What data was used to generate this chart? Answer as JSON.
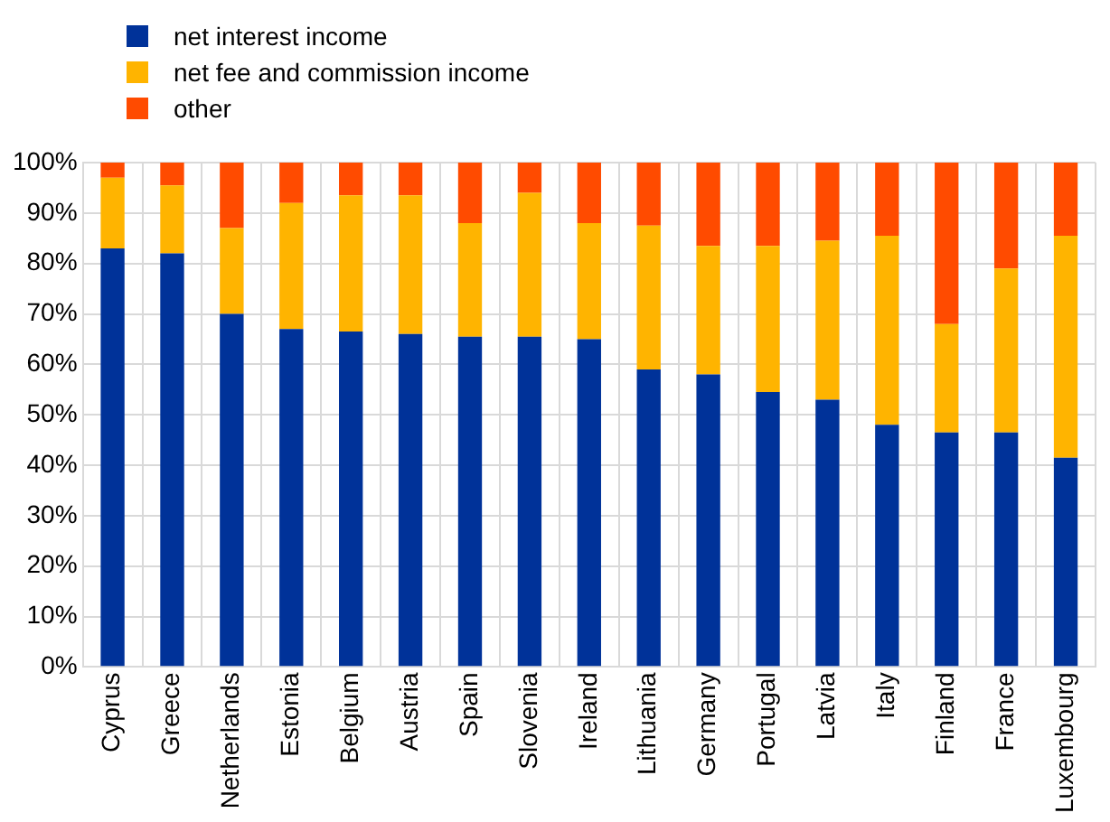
{
  "chart_data": {
    "type": "bar",
    "stacked": true,
    "legend": "top left",
    "grid": true,
    "categories": [
      "Cyprus",
      "Greece",
      "Netherlands",
      "Estonia",
      "Belgium",
      "Austria",
      "Spain",
      "Slovenia",
      "Ireland",
      "Lithuania",
      "Germany",
      "Portugal",
      "Latvia",
      "Italy",
      "Finland",
      "France",
      "Luxembourg"
    ],
    "ylim": [
      0,
      100
    ],
    "yticks": [
      {
        "value": 0,
        "label": "0%"
      },
      {
        "value": 10,
        "label": "10%"
      },
      {
        "value": 20,
        "label": "20%"
      },
      {
        "value": 30,
        "label": "30%"
      },
      {
        "value": 40,
        "label": "40%"
      },
      {
        "value": 50,
        "label": "50%"
      },
      {
        "value": 60,
        "label": "60%"
      },
      {
        "value": 70,
        "label": "70%"
      },
      {
        "value": 80,
        "label": "80%"
      },
      {
        "value": 90,
        "label": "90%"
      },
      {
        "value": 100,
        "label": "100%"
      }
    ],
    "series": [
      {
        "name": "net interest income",
        "color": "#003299",
        "values": [
          83,
          82,
          70,
          67,
          66.5,
          66,
          65.5,
          65.5,
          65,
          59,
          58,
          54.5,
          53,
          48,
          46.5,
          46.5,
          41.5
        ]
      },
      {
        "name": "net fee and commission income",
        "color": "#ffb400",
        "values": [
          14,
          13.5,
          17,
          25,
          27,
          27.5,
          22.5,
          28.5,
          23,
          28.5,
          25.5,
          29,
          31.5,
          37.5,
          21.5,
          32.5,
          44
        ]
      },
      {
        "name": "other",
        "color": "#ff4b00",
        "values": [
          3,
          4.5,
          13,
          8,
          6.5,
          6.5,
          12,
          6,
          12,
          12.5,
          16.5,
          16.5,
          15.5,
          14.5,
          32,
          21,
          14.5
        ]
      }
    ]
  }
}
